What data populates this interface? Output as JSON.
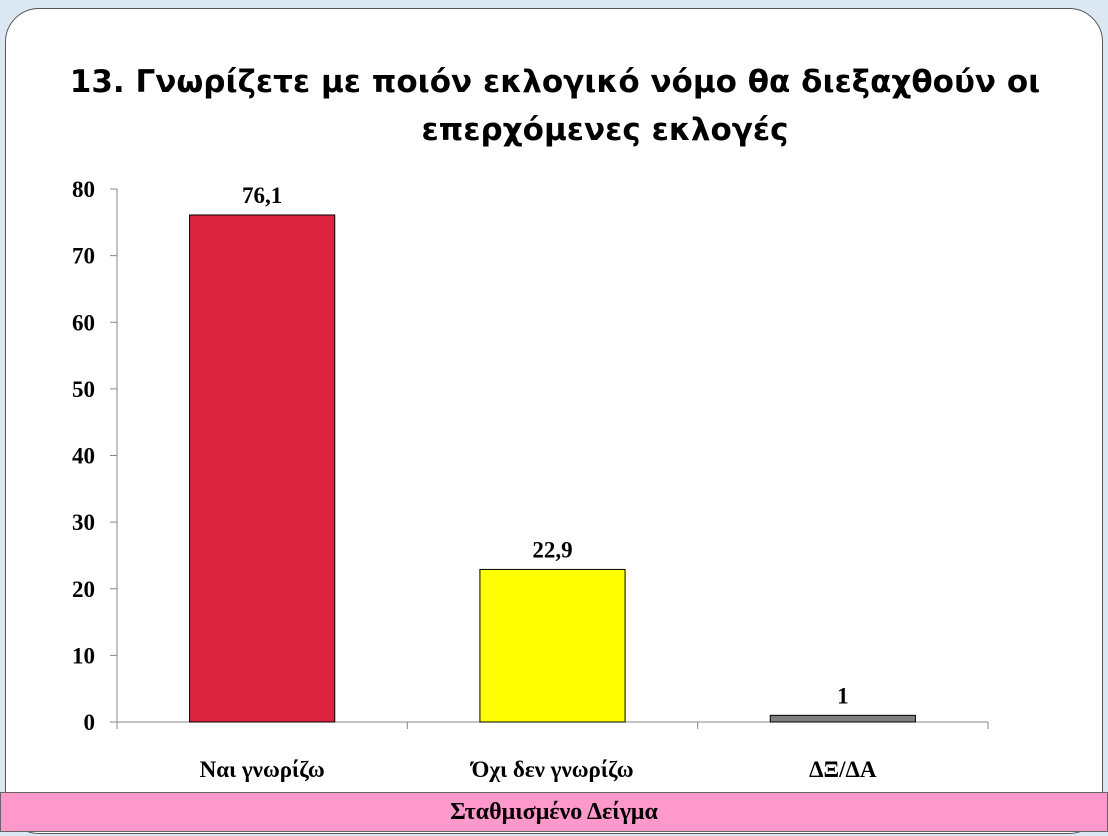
{
  "chart_data": {
    "type": "bar",
    "title": [
      "13. Γνωρίζετε με ποιόν εκλογικό νόμο θα διεξαχθούν οι",
      "επερχόμενες εκλογές"
    ],
    "categories": [
      "Ναι γνωρίζω",
      "Όχι δεν γνωρίζω",
      "ΔΞ/ΔΑ"
    ],
    "values": [
      76.1,
      22.9,
      1
    ],
    "value_labels": [
      "76,1",
      "22,9",
      "1"
    ],
    "colors": [
      "#dc2440",
      "#ffff00",
      "#808080"
    ],
    "ylim": [
      0,
      80
    ],
    "yticks": [
      0,
      10,
      20,
      30,
      40,
      50,
      60,
      70,
      80
    ],
    "grid": false
  },
  "footer": "Σταθμισμένο Δείγμα"
}
